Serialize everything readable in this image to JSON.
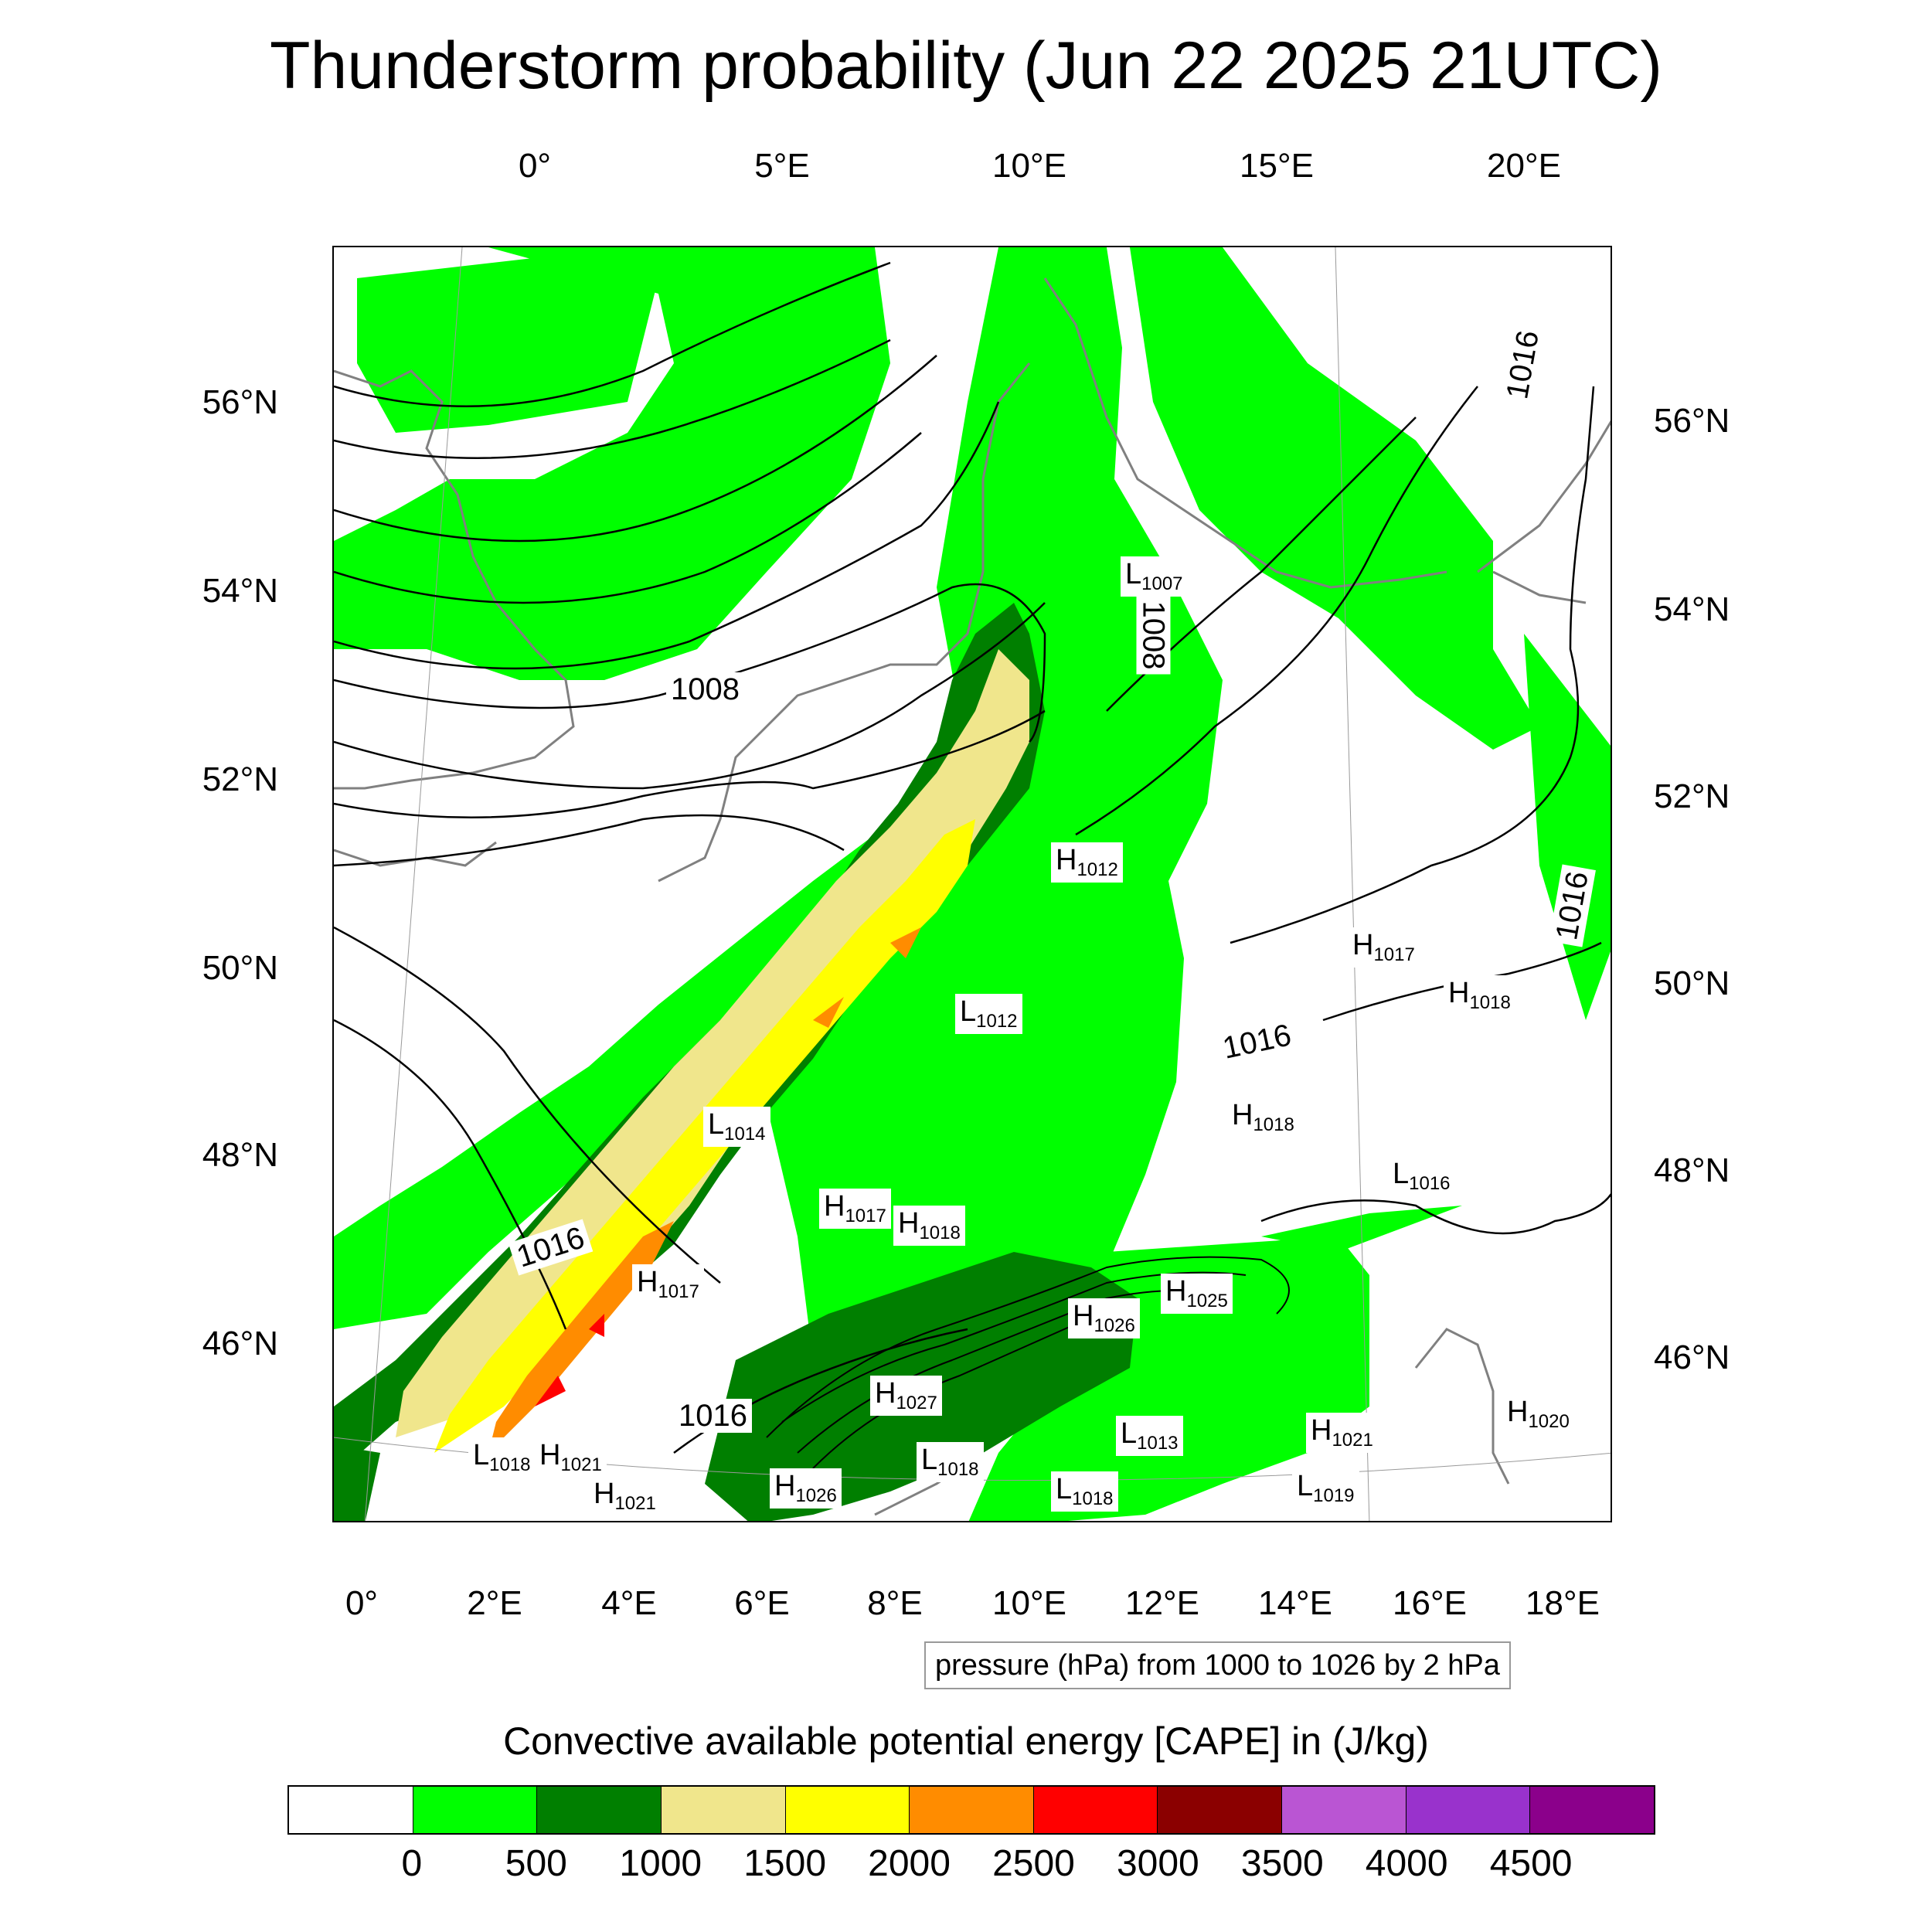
{
  "title": "Thunderstorm probability (Jun 22 2025 21UTC)",
  "axes": {
    "top_lon": [
      "0°",
      "5°E",
      "10°E",
      "15°E",
      "20°E"
    ],
    "bottom_lon": [
      "0°",
      "2°E",
      "4°E",
      "6°E",
      "8°E",
      "10°E",
      "12°E",
      "14°E",
      "16°E",
      "18°E"
    ],
    "left_lat": [
      "56°N",
      "54°N",
      "52°N",
      "50°N",
      "48°N",
      "46°N"
    ],
    "right_lat": [
      "56°N",
      "54°N",
      "52°N",
      "50°N",
      "48°N",
      "46°N"
    ]
  },
  "contour_note": "pressure (hPa) from 1000 to 1026 by 2 hPa",
  "colorbar": {
    "title": "Convective available potential energy [CAPE] in (J/kg)",
    "colors": [
      "#ffffff",
      "#00ff00",
      "#007f00",
      "#f0e68c",
      "#ffff00",
      "#ff8c00",
      "#ff0000",
      "#8b0000",
      "#ba55d3",
      "#9932cc",
      "#8b008b"
    ],
    "ticks": [
      "0",
      "500",
      "1000",
      "1500",
      "2000",
      "2500",
      "3000",
      "3500",
      "4000",
      "4500"
    ]
  },
  "isobar_labels": [
    {
      "text": "1008"
    },
    {
      "text": "1008"
    },
    {
      "text": "1016"
    },
    {
      "text": "1016"
    },
    {
      "text": "1016"
    },
    {
      "text": "1016"
    },
    {
      "text": "1016"
    }
  ],
  "pressure_centers": [
    {
      "letter": "L",
      "value": "1007"
    },
    {
      "letter": "H",
      "value": "1012"
    },
    {
      "letter": "L",
      "value": "1012"
    },
    {
      "letter": "H",
      "value": "1017"
    },
    {
      "letter": "H",
      "value": "1018"
    },
    {
      "letter": "H",
      "value": "1018"
    },
    {
      "letter": "L",
      "value": "1014"
    },
    {
      "letter": "L",
      "value": "1016"
    },
    {
      "letter": "H",
      "value": "1017"
    },
    {
      "letter": "H",
      "value": "1018"
    },
    {
      "letter": "H",
      "value": "1017"
    },
    {
      "letter": "H",
      "value": "1026"
    },
    {
      "letter": "H",
      "value": "1025"
    },
    {
      "letter": "H",
      "value": "1027"
    },
    {
      "letter": "L",
      "value": "1018"
    },
    {
      "letter": "H",
      "value": "1021"
    },
    {
      "letter": "H",
      "value": "1021"
    },
    {
      "letter": "H",
      "value": "1026"
    },
    {
      "letter": "L",
      "value": "1018"
    },
    {
      "letter": "L",
      "value": "1018"
    },
    {
      "letter": "L",
      "value": "1013"
    },
    {
      "letter": "H",
      "value": "1021"
    },
    {
      "letter": "L",
      "value": "1019"
    },
    {
      "letter": "H",
      "value": "1020"
    }
  ]
}
